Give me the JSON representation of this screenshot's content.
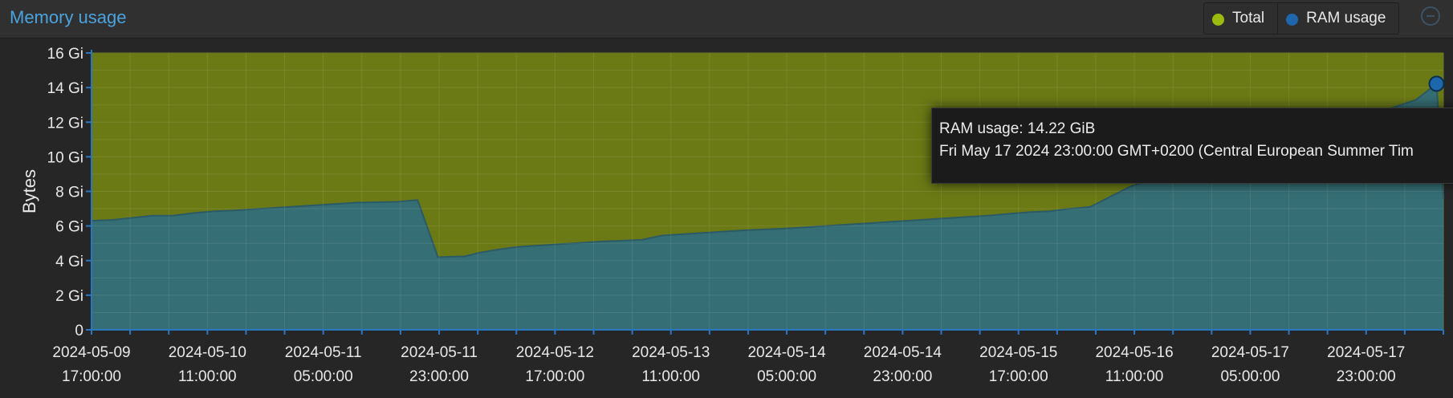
{
  "panel": {
    "title": "Memory usage"
  },
  "legend": [
    {
      "label": "Total",
      "color": "#9bbb0e"
    },
    {
      "label": "RAM usage",
      "color": "#1f67ad"
    }
  ],
  "tooltip": {
    "line1": "RAM usage: 14.22 GiB",
    "line2": "Fri May 17 2024 23:00:00 GMT+0200 (Central European Summer Tim"
  },
  "chart_data": {
    "type": "area",
    "ylabel": "Bytes",
    "unit": "GiB",
    "ylim": [
      0,
      16
    ],
    "yticks": [
      0,
      2,
      4,
      6,
      8,
      10,
      12,
      14,
      16
    ],
    "ytick_labels": [
      "0",
      "2 Gi",
      "4 Gi",
      "6 Gi",
      "8 Gi",
      "10 Gi",
      "12 Gi",
      "14 Gi",
      "16 Gi"
    ],
    "xlim": [
      "2024-05-09 17:00:00",
      "2024-05-18 00:00:00"
    ],
    "xtick_labels": [
      [
        "2024-05-09",
        "17:00:00"
      ],
      [
        "2024-05-10",
        "11:00:00"
      ],
      [
        "2024-05-11",
        "05:00:00"
      ],
      [
        "2024-05-11",
        "23:00:00"
      ],
      [
        "2024-05-12",
        "17:00:00"
      ],
      [
        "2024-05-13",
        "11:00:00"
      ],
      [
        "2024-05-14",
        "05:00:00"
      ],
      [
        "2024-05-14",
        "23:00:00"
      ],
      [
        "2024-05-15",
        "17:00:00"
      ],
      [
        "2024-05-16",
        "11:00:00"
      ],
      [
        "2024-05-17",
        "05:00:00"
      ],
      [
        "2024-05-17",
        "23:00:00"
      ]
    ],
    "grid": true,
    "series": [
      {
        "name": "Total",
        "color": "#6b7a15",
        "x": [
          "2024-05-09 17:00",
          "2024-05-18 00:00"
        ],
        "y": [
          16,
          16
        ]
      },
      {
        "name": "RAM usage",
        "color": "#356e74",
        "x": [
          "2024-05-09 17:00",
          "2024-05-09 20:00",
          "2024-05-10 02:00",
          "2024-05-10 05:00",
          "2024-05-10 08:00",
          "2024-05-10 11:00",
          "2024-05-10 14:00",
          "2024-05-10 20:00",
          "2024-05-11 02:00",
          "2024-05-11 08:00",
          "2024-05-11 14:00",
          "2024-05-11 17:00",
          "2024-05-11 20:00",
          "2024-05-12 00:00",
          "2024-05-12 02:00",
          "2024-05-12 05:00",
          "2024-05-12 08:00",
          "2024-05-12 14:00",
          "2024-05-12 20:00",
          "2024-05-13 02:00",
          "2024-05-13 05:00",
          "2024-05-13 11:00",
          "2024-05-13 17:00",
          "2024-05-13 23:00",
          "2024-05-14 05:00",
          "2024-05-14 11:00",
          "2024-05-14 17:00",
          "2024-05-14 23:00",
          "2024-05-15 05:00",
          "2024-05-15 11:00",
          "2024-05-15 14:00",
          "2024-05-15 17:00",
          "2024-05-15 20:00",
          "2024-05-16 02:00",
          "2024-05-16 08:00",
          "2024-05-16 14:00",
          "2024-05-16 20:00",
          "2024-05-17 02:00",
          "2024-05-17 08:00",
          "2024-05-17 14:00",
          "2024-05-17 20:00",
          "2024-05-17 23:00",
          "2024-05-18 00:00"
        ],
        "y": [
          6.3,
          6.35,
          6.6,
          6.6,
          6.75,
          6.85,
          6.9,
          7.05,
          7.2,
          7.35,
          7.4,
          7.5,
          4.2,
          4.25,
          4.45,
          4.65,
          4.8,
          4.95,
          5.1,
          5.2,
          5.45,
          5.6,
          5.75,
          5.85,
          6.0,
          6.15,
          6.3,
          6.45,
          6.6,
          6.8,
          6.85,
          7.0,
          7.1,
          8.3,
          9.0,
          9.5,
          10.2,
          11.1,
          11.9,
          12.5,
          13.3,
          14.22,
          7.55
        ]
      }
    ],
    "highlight": {
      "series": "RAM usage",
      "x": "2024-05-17 23:00",
      "y": 14.22
    }
  }
}
